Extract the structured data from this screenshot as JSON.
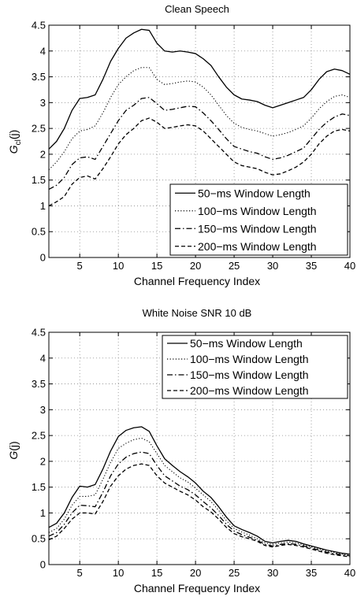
{
  "chart_data": [
    {
      "type": "line",
      "title": "Clean Speech",
      "xlabel": "Channel Frequency Index",
      "ylabel": "G",
      "ylabel_sub": "cl",
      "ylabel_arg": "(j)",
      "xlim": [
        1,
        40
      ],
      "ylim": [
        0,
        4.5
      ],
      "xticks": [
        5,
        10,
        15,
        20,
        25,
        30,
        35,
        40
      ],
      "yticks": [
        0,
        0.5,
        1,
        1.5,
        2,
        2.5,
        3,
        3.5,
        4,
        4.5
      ],
      "grid": true,
      "legend_position": "bottom-right",
      "x": [
        1,
        2,
        3,
        4,
        5,
        6,
        7,
        8,
        9,
        10,
        11,
        12,
        13,
        14,
        15,
        16,
        17,
        18,
        19,
        20,
        21,
        22,
        23,
        24,
        25,
        26,
        27,
        28,
        29,
        30,
        31,
        32,
        33,
        34,
        35,
        36,
        37,
        38,
        39,
        40
      ],
      "series": [
        {
          "name": "50−ms Window Length",
          "style": "solid",
          "values": [
            2.1,
            2.25,
            2.5,
            2.85,
            3.08,
            3.1,
            3.15,
            3.45,
            3.8,
            4.05,
            4.25,
            4.35,
            4.42,
            4.4,
            4.15,
            4.0,
            3.98,
            4.0,
            3.98,
            3.95,
            3.85,
            3.72,
            3.5,
            3.3,
            3.15,
            3.07,
            3.05,
            3.02,
            2.95,
            2.9,
            2.95,
            3.0,
            3.05,
            3.1,
            3.25,
            3.45,
            3.6,
            3.65,
            3.62,
            3.55
          ]
        },
        {
          "name": "100−ms Window Length",
          "style": "dotted",
          "values": [
            1.7,
            1.85,
            2.05,
            2.3,
            2.45,
            2.48,
            2.55,
            2.8,
            3.1,
            3.35,
            3.5,
            3.62,
            3.68,
            3.68,
            3.45,
            3.35,
            3.37,
            3.4,
            3.42,
            3.4,
            3.3,
            3.15,
            2.95,
            2.75,
            2.6,
            2.52,
            2.48,
            2.45,
            2.4,
            2.35,
            2.38,
            2.42,
            2.48,
            2.55,
            2.7,
            2.88,
            3.02,
            3.12,
            3.15,
            3.1
          ]
        },
        {
          "name": "150−ms Window Length",
          "style": "dashdot",
          "values": [
            1.32,
            1.4,
            1.55,
            1.8,
            1.93,
            1.95,
            1.9,
            2.15,
            2.4,
            2.65,
            2.85,
            2.95,
            3.08,
            3.1,
            2.98,
            2.85,
            2.87,
            2.9,
            2.93,
            2.92,
            2.8,
            2.65,
            2.48,
            2.3,
            2.15,
            2.1,
            2.05,
            2.02,
            1.95,
            1.9,
            1.93,
            1.98,
            2.05,
            2.12,
            2.3,
            2.48,
            2.62,
            2.72,
            2.78,
            2.75
          ]
        },
        {
          "name": "200−ms Window Length",
          "style": "dashed",
          "values": [
            1.0,
            1.08,
            1.18,
            1.42,
            1.55,
            1.58,
            1.52,
            1.72,
            1.95,
            2.2,
            2.38,
            2.5,
            2.65,
            2.7,
            2.62,
            2.5,
            2.52,
            2.55,
            2.57,
            2.55,
            2.45,
            2.3,
            2.15,
            2.0,
            1.85,
            1.78,
            1.75,
            1.72,
            1.65,
            1.6,
            1.62,
            1.68,
            1.75,
            1.85,
            2.0,
            2.2,
            2.35,
            2.45,
            2.48,
            2.45
          ]
        }
      ]
    },
    {
      "type": "line",
      "title": "White Noise SNR 10 dB",
      "xlabel": "Channel Frequency Index",
      "ylabel": "G",
      "ylabel_sub": "",
      "ylabel_arg": "(j)",
      "xlim": [
        1,
        40
      ],
      "ylim": [
        0,
        4.5
      ],
      "xticks": [
        5,
        10,
        15,
        20,
        25,
        30,
        35,
        40
      ],
      "yticks": [
        0,
        0.5,
        1,
        1.5,
        2,
        2.5,
        3,
        3.5,
        4,
        4.5
      ],
      "grid": true,
      "legend_position": "top-right",
      "x": [
        1,
        2,
        3,
        4,
        5,
        6,
        7,
        8,
        9,
        10,
        11,
        12,
        13,
        14,
        15,
        16,
        17,
        18,
        19,
        20,
        21,
        22,
        23,
        24,
        25,
        26,
        27,
        28,
        29,
        30,
        31,
        32,
        33,
        34,
        35,
        36,
        37,
        38,
        39,
        40
      ],
      "series": [
        {
          "name": "50−ms Window Length",
          "style": "solid",
          "values": [
            0.72,
            0.8,
            1.0,
            1.3,
            1.52,
            1.5,
            1.55,
            1.85,
            2.2,
            2.48,
            2.6,
            2.65,
            2.67,
            2.58,
            2.3,
            2.05,
            1.92,
            1.8,
            1.7,
            1.58,
            1.42,
            1.3,
            1.12,
            0.92,
            0.75,
            0.68,
            0.62,
            0.55,
            0.45,
            0.42,
            0.45,
            0.47,
            0.45,
            0.4,
            0.36,
            0.32,
            0.28,
            0.25,
            0.22,
            0.2
          ]
        },
        {
          "name": "100−ms Window Length",
          "style": "dotted",
          "values": [
            0.62,
            0.7,
            0.88,
            1.15,
            1.32,
            1.32,
            1.35,
            1.65,
            1.98,
            2.25,
            2.35,
            2.42,
            2.45,
            2.38,
            2.15,
            1.92,
            1.8,
            1.68,
            1.6,
            1.48,
            1.35,
            1.22,
            1.05,
            0.85,
            0.7,
            0.63,
            0.57,
            0.5,
            0.42,
            0.39,
            0.42,
            0.44,
            0.42,
            0.38,
            0.34,
            0.3,
            0.26,
            0.23,
            0.2,
            0.18
          ]
        },
        {
          "name": "150−ms Window Length",
          "style": "dashdot",
          "values": [
            0.55,
            0.62,
            0.78,
            1.0,
            1.15,
            1.14,
            1.12,
            1.4,
            1.72,
            1.95,
            2.08,
            2.15,
            2.18,
            2.15,
            1.92,
            1.72,
            1.62,
            1.52,
            1.45,
            1.35,
            1.22,
            1.1,
            0.95,
            0.78,
            0.65,
            0.58,
            0.53,
            0.47,
            0.39,
            0.36,
            0.39,
            0.41,
            0.39,
            0.36,
            0.32,
            0.28,
            0.24,
            0.21,
            0.19,
            0.17
          ]
        },
        {
          "name": "200−ms Window Length",
          "style": "dashed",
          "values": [
            0.48,
            0.55,
            0.7,
            0.88,
            1.0,
            1.0,
            0.98,
            1.22,
            1.52,
            1.72,
            1.85,
            1.92,
            1.95,
            1.92,
            1.72,
            1.58,
            1.5,
            1.42,
            1.35,
            1.25,
            1.12,
            1.02,
            0.88,
            0.72,
            0.6,
            0.54,
            0.5,
            0.45,
            0.37,
            0.34,
            0.37,
            0.39,
            0.37,
            0.34,
            0.3,
            0.26,
            0.22,
            0.19,
            0.17,
            0.15
          ]
        }
      ]
    }
  ]
}
